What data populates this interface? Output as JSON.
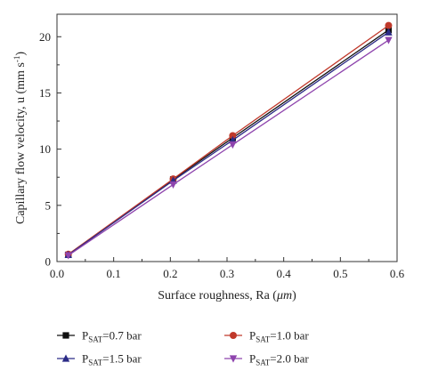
{
  "chart_data": {
    "type": "line",
    "title": "",
    "xlabel_prefix": "Surface roughness, Ra (",
    "xlabel_unit": "μm",
    "xlabel_suffix": ")",
    "ylabel_main": "Capillary flow velocity, u (mm s",
    "ylabel_exp": "-1",
    "ylabel_close": ")",
    "xlim": [
      0,
      0.6
    ],
    "ylim": [
      0,
      22
    ],
    "xticks": [
      "0.0",
      "0.1",
      "0.2",
      "0.3",
      "0.4",
      "0.5",
      "0.6"
    ],
    "xtick_values": [
      0,
      0.1,
      0.2,
      0.3,
      0.4,
      0.5,
      0.6
    ],
    "yticks": [
      "0",
      "5",
      "10",
      "15",
      "20"
    ],
    "ytick_values": [
      0,
      5,
      10,
      15,
      20
    ],
    "grid": false,
    "legend_position": "bottom",
    "x": [
      0.02,
      0.205,
      0.31,
      0.585
    ],
    "series": [
      {
        "name": "P_SAT=0.7 bar",
        "sym": "P",
        "sub": "SAT",
        "rest": "=0.7 bar",
        "marker": "square",
        "color": "#111111",
        "values": [
          0.6,
          7.3,
          11.0,
          20.6
        ]
      },
      {
        "name": "P_SAT=1.0 bar",
        "sym": "P",
        "sub": "SAT",
        "rest": "=1.0 bar",
        "marker": "circle",
        "color": "#c0392b",
        "values": [
          0.65,
          7.35,
          11.2,
          21.0
        ]
      },
      {
        "name": "P_SAT=1.5 bar",
        "sym": "P",
        "sub": "SAT",
        "rest": "=1.5 bar",
        "marker": "triangle-up",
        "color": "#2b2b86",
        "values": [
          0.6,
          7.2,
          10.8,
          20.4
        ]
      },
      {
        "name": "P_SAT=2.0 bar",
        "sym": "P",
        "sub": "SAT",
        "rest": "=2.0 bar",
        "marker": "triangle-down",
        "color": "#8e44ad",
        "values": [
          0.55,
          6.85,
          10.4,
          19.7
        ]
      }
    ]
  }
}
